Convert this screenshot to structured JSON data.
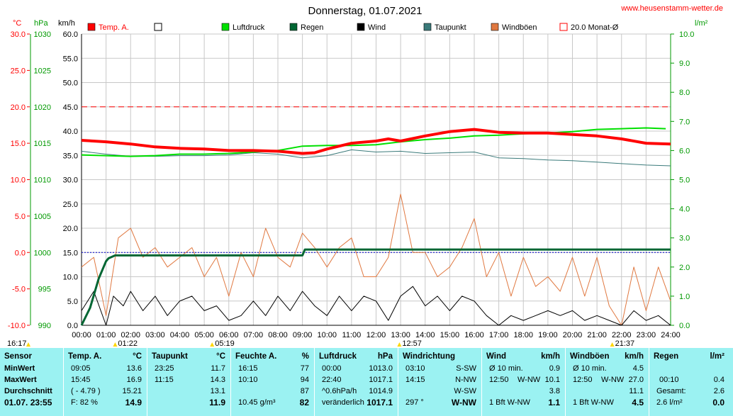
{
  "title": "Donnerstag, 01.07.2021",
  "site": "www.heusenstamm-wetter.de",
  "axis_units": {
    "temp": "°C",
    "pressure": "hPa",
    "wind": "km/h",
    "rain": "l/m²"
  },
  "colors": {
    "temp": "#ff0000",
    "luftdruck": "#00e000",
    "regen": "#006633",
    "wind": "#000000",
    "taupunkt": "#3a7a7a",
    "windboeen": "#e07840",
    "monat": "#ff0000",
    "axis_left": "#ff0000",
    "axis_pressure": "#009900",
    "axis_rain": "#009900",
    "stats_bg": "#9bf2f2"
  },
  "legend": [
    {
      "label": "Temp. A.",
      "color": "#ff0000",
      "kind": "fill"
    },
    {
      "label": "",
      "color": "#ffffff",
      "kind": "box"
    },
    {
      "label": "Luftdruck",
      "color": "#00e000",
      "kind": "fill"
    },
    {
      "label": "Regen",
      "color": "#006633",
      "kind": "fill"
    },
    {
      "label": "Wind",
      "color": "#000000",
      "kind": "fill"
    },
    {
      "label": "Taupunkt",
      "color": "#3a7a7a",
      "kind": "fill"
    },
    {
      "label": "Windböen",
      "color": "#e07840",
      "kind": "fill"
    },
    {
      "label": "20.0 Monat-Ø",
      "color": "#ff0000",
      "kind": "box"
    }
  ],
  "event_markers": [
    {
      "label": "16:17",
      "hour": -1.2,
      "color": "#ffd700"
    },
    {
      "label": "01:22",
      "hour": 1.37,
      "color": "#ffd700"
    },
    {
      "label": "05:19",
      "hour": 5.32,
      "color": "#ffd700"
    },
    {
      "label": "12:57",
      "hour": 12.95,
      "color": "#ffd700"
    },
    {
      "label": "21:37",
      "hour": 21.62,
      "color": "#ffd700"
    }
  ],
  "chart_data": {
    "type": "line",
    "x_ticks": [
      "00:00",
      "01:00",
      "02:00",
      "03:00",
      "04:00",
      "05:00",
      "06:00",
      "07:00",
      "08:00",
      "09:00",
      "10:00",
      "11:00",
      "12:00",
      "13:00",
      "14:00",
      "15:00",
      "16:00",
      "17:00",
      "18:00",
      "19:00",
      "20:00",
      "21:00",
      "22:00",
      "23:00",
      "24:00"
    ],
    "xlim": [
      0,
      24
    ],
    "axes": {
      "temp": {
        "ylim": [
          -10,
          30
        ],
        "ticks": [
          "30.0",
          "25.0",
          "20.0",
          "15.0",
          "10.0",
          "5.0",
          "0.0",
          "-5.0",
          "-10.0"
        ]
      },
      "pressure": {
        "ylim": [
          990,
          1030
        ],
        "ticks": [
          "1030",
          "1025",
          "1020",
          "1015",
          "1010",
          "1005",
          "1000",
          "995",
          "990"
        ]
      },
      "wind": {
        "ylim": [
          0,
          60
        ],
        "ticks": [
          "60.0",
          "55.0",
          "50.0",
          "45.0",
          "40.0",
          "35.0",
          "30.0",
          "25.0",
          "20.0",
          "15.0",
          "10.0",
          "5.0",
          "0.0"
        ]
      },
      "rain": {
        "ylim": [
          0,
          10
        ],
        "ticks": [
          "10.0",
          "9.0",
          "8.0",
          "7.0",
          "6.0",
          "5.0",
          "4.0",
          "3.0",
          "2.0",
          "1.0",
          "0.0"
        ]
      }
    },
    "month_avg_temp": 20.0,
    "series": [
      {
        "name": "Temp. A.",
        "axis": "temp",
        "x": [
          0,
          1,
          2,
          3,
          4,
          5,
          6,
          7,
          8,
          9,
          9.5,
          10,
          11,
          12,
          12.5,
          13,
          14,
          15,
          16,
          17,
          18,
          19,
          20,
          21,
          22,
          23,
          24
        ],
        "y": [
          15.4,
          15.2,
          14.9,
          14.5,
          14.3,
          14.2,
          14.0,
          14.0,
          13.9,
          13.6,
          13.7,
          14.2,
          15.0,
          15.3,
          15.6,
          15.3,
          16.0,
          16.6,
          16.9,
          16.5,
          16.4,
          16.4,
          16.2,
          16.0,
          15.6,
          15.0,
          14.9
        ]
      },
      {
        "name": "Luftdruck",
        "axis": "pressure",
        "x": [
          0,
          1,
          2,
          3,
          4,
          5,
          6,
          7,
          8,
          9,
          10,
          11,
          12,
          13,
          14,
          15,
          16,
          17,
          18,
          19,
          20,
          21,
          22,
          23,
          23.8
        ],
        "y": [
          1013.4,
          1013.3,
          1013.2,
          1013.3,
          1013.5,
          1013.5,
          1013.6,
          1013.8,
          1014.0,
          1014.6,
          1014.7,
          1014.7,
          1014.8,
          1015.2,
          1015.5,
          1015.7,
          1016.0,
          1016.1,
          1016.3,
          1016.4,
          1016.6,
          1016.9,
          1017.0,
          1017.1,
          1017.0
        ]
      },
      {
        "name": "Taupunkt",
        "axis": "temp",
        "x": [
          0,
          1,
          2,
          3,
          4,
          5,
          6,
          7,
          8,
          9,
          10,
          11,
          12,
          13,
          14,
          15,
          16,
          17,
          18,
          19,
          20,
          21,
          22,
          23,
          24
        ],
        "y": [
          13.9,
          13.5,
          13.2,
          13.2,
          13.3,
          13.3,
          13.4,
          13.7,
          13.5,
          13.0,
          13.3,
          14.1,
          13.8,
          13.9,
          13.6,
          13.7,
          13.8,
          13.0,
          12.9,
          12.7,
          12.6,
          12.4,
          12.2,
          12.0,
          11.9
        ]
      },
      {
        "name": "Regen",
        "axis": "rain",
        "x": [
          0,
          0.35,
          0.7,
          1.0,
          1.1,
          1.37,
          2,
          3,
          4,
          5,
          6,
          7,
          8,
          9,
          9.1,
          9.5,
          10,
          12,
          14,
          16,
          18,
          20,
          22,
          24
        ],
        "y": [
          0,
          0.6,
          1.6,
          2.2,
          2.3,
          2.4,
          2.4,
          2.4,
          2.4,
          2.4,
          2.4,
          2.4,
          2.4,
          2.4,
          2.6,
          2.6,
          2.6,
          2.6,
          2.6,
          2.6,
          2.6,
          2.6,
          2.6,
          2.6
        ]
      },
      {
        "name": "Wind",
        "axis": "wind",
        "x": [
          0,
          0.5,
          1,
          1.3,
          1.7,
          2,
          2.5,
          3,
          3.5,
          4,
          4.5,
          5,
          5.5,
          6,
          6.5,
          7,
          7.5,
          8,
          8.5,
          9,
          9.5,
          10,
          10.5,
          11,
          11.5,
          12,
          12.5,
          13,
          13.5,
          14,
          14.5,
          15,
          15.5,
          16,
          16.5,
          17,
          17.5,
          18,
          18.5,
          19,
          19.5,
          20,
          20.5,
          21,
          21.5,
          22,
          22.5,
          23,
          23.5,
          24
        ],
        "y": [
          3,
          7,
          0,
          6,
          4,
          7,
          3,
          6,
          2,
          5,
          6,
          3,
          4,
          1,
          2,
          5,
          2,
          6,
          3,
          7,
          4,
          2,
          6,
          3,
          6,
          5,
          1,
          6,
          8,
          4,
          6,
          3,
          6,
          5,
          2,
          0,
          2,
          1,
          2,
          3,
          2,
          3,
          1,
          2,
          1,
          0,
          3,
          1,
          2,
          0
        ]
      },
      {
        "name": "Windböen",
        "axis": "wind",
        "x": [
          0,
          0.5,
          1,
          1.5,
          2,
          2.5,
          3,
          3.5,
          4,
          4.5,
          5,
          5.5,
          6,
          6.5,
          7,
          7.5,
          8,
          8.5,
          9,
          9.5,
          10,
          10.5,
          11,
          11.5,
          12,
          12.5,
          13,
          13.5,
          14,
          14.5,
          15,
          15.5,
          16,
          16.5,
          17,
          17.5,
          18,
          18.5,
          19,
          19.5,
          20,
          20.5,
          21,
          21.5,
          22,
          22.5,
          23,
          23.5,
          24
        ],
        "y": [
          12,
          14,
          2,
          18,
          20,
          14,
          16,
          12,
          14,
          16,
          10,
          14,
          6,
          15,
          10,
          20,
          14,
          12,
          19,
          16,
          12,
          16,
          18,
          10,
          10,
          14,
          27,
          15,
          15,
          10,
          12,
          16,
          22,
          10,
          15,
          6,
          14,
          8,
          10,
          7,
          14,
          6,
          14,
          4,
          0,
          12,
          3,
          12,
          5
        ]
      }
    ]
  },
  "stats": {
    "sensor": {
      "header": "Sensor",
      "rows": [
        "MinWert",
        "MaxWert",
        "Durchschnitt"
      ],
      "date": "01.07. 23:55"
    },
    "temp": {
      "header": "Temp. A.",
      "unit": "°C",
      "rows": [
        [
          "09:05",
          "13.6"
        ],
        [
          "15:45",
          "16.9"
        ],
        [
          "( - 4.79 )",
          "15.21"
        ]
      ],
      "foot_l": "F: 82 %",
      "foot_r": "14.9"
    },
    "taupunkt": {
      "header": "Taupunkt",
      "unit": "°C",
      "rows": [
        [
          "23:25",
          "11.7"
        ],
        [
          "11:15",
          "14.3"
        ],
        [
          "",
          "13.1"
        ]
      ],
      "foot_l": "",
      "foot_r": "11.9"
    },
    "feuchte": {
      "header": "Feuchte A.",
      "unit": "%",
      "rows": [
        [
          "16:15",
          "77"
        ],
        [
          "10:10",
          "94"
        ],
        [
          "",
          "87"
        ]
      ],
      "foot_l": "10.45 g/m³",
      "foot_r": "82"
    },
    "luftdruck": {
      "header": "Luftdruck",
      "unit": "hPa",
      "rows": [
        [
          "00:00",
          "1013.0"
        ],
        [
          "22:40",
          "1017.1"
        ],
        [
          "^0.6hPa/h",
          "1014.9"
        ]
      ],
      "foot_l": "veränderlich",
      "foot_r": "1017.1"
    },
    "windrichtung": {
      "header": "Windrichtung",
      "unit": "",
      "rows": [
        [
          "03:10",
          "S-SW"
        ],
        [
          "14:15",
          "N-NW"
        ],
        [
          "",
          "W-SW"
        ]
      ],
      "foot_l": "297 °",
      "foot_r": "W-NW"
    },
    "wind": {
      "header": "Wind",
      "unit": "km/h",
      "rows": [
        [
          "Ø 10 min.",
          "",
          "0.9"
        ],
        [
          "12:50",
          "W-NW",
          "10.1"
        ],
        [
          "",
          "",
          "3.8"
        ]
      ],
      "foot_l": "1 Bft W-NW",
      "foot_r": "1.1"
    },
    "windboeen": {
      "header": "Windböen",
      "unit": "km/h",
      "rows": [
        [
          "Ø 10 min.",
          "",
          "4.5"
        ],
        [
          "12:50",
          "W-NW",
          "27.0"
        ],
        [
          "",
          "",
          "11.1"
        ]
      ],
      "foot_l": "1 Bft W-NW",
      "foot_r": "4.5"
    },
    "regen": {
      "header": "Regen",
      "unit": "l/m²",
      "rows": [
        [
          "00:10",
          "0.4"
        ],
        [
          "Gesamt:",
          "2.6"
        ],
        [
          "2.6 l/m²",
          ""
        ]
      ],
      "foot_l": "",
      "foot_r": "0.0"
    }
  }
}
